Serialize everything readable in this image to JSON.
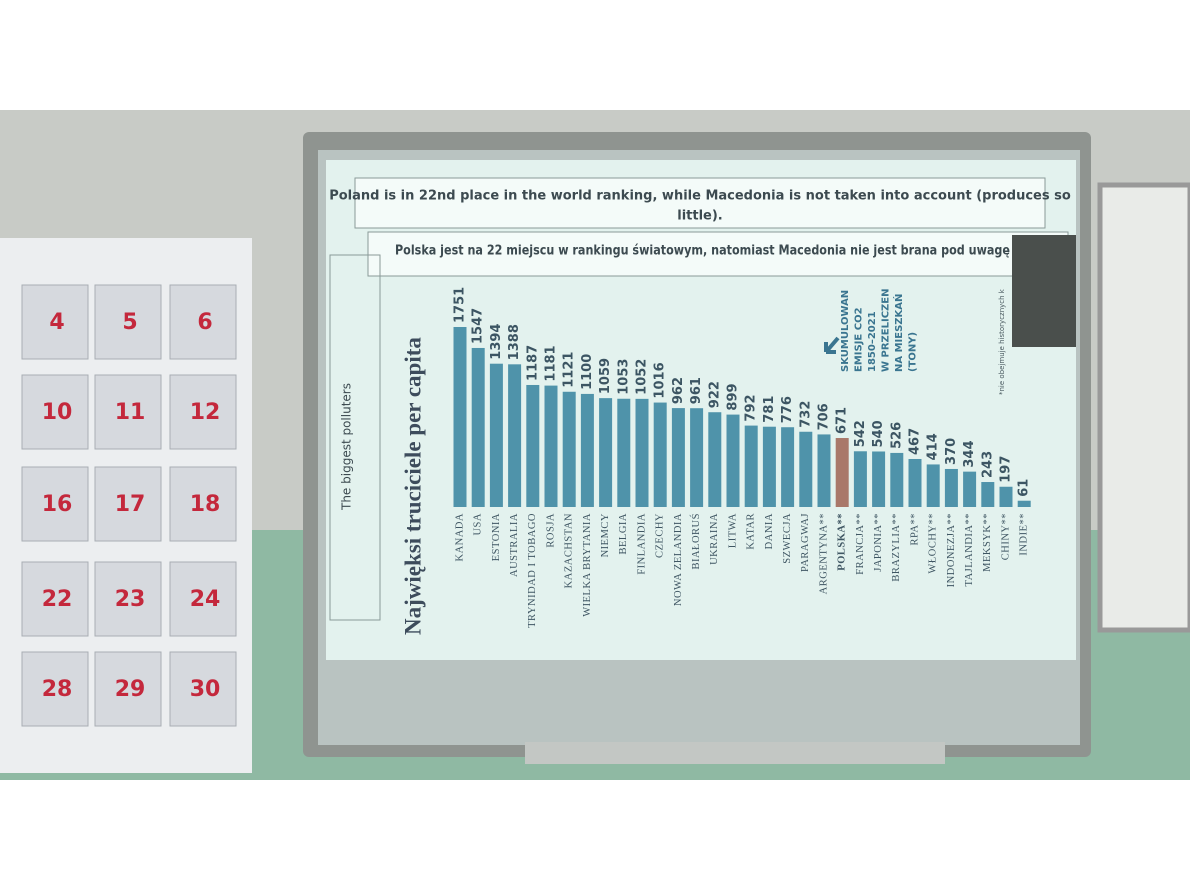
{
  "chart_data": {
    "type": "bar",
    "title": "Najwięksi truciciele per capita",
    "categories": [
      "KANADA",
      "USA",
      "ESTONIA",
      "AUSTRALIA",
      "TRYNIDAD I TOBAGO",
      "ROSJA",
      "KAZACHSTAN",
      "WIELKA BRYTANIA",
      "NIEMCY",
      "BELGIA",
      "FINLANDIA",
      "CZECHY",
      "NOWA ZELANDIA",
      "BIAŁORUŚ",
      "UKRAINA",
      "LITWA",
      "KATAR",
      "DANIA",
      "SZWECJA",
      "PARAGWAJ",
      "ARGENTYNA**",
      "POLSKA**",
      "FRANCJA**",
      "JAPONIA**",
      "BRAZYLIA**",
      "RPA**",
      "WŁOCHY**",
      "INDONEZJA**",
      "TAJLANDIA**",
      "MEKSYK**",
      "CHINY**",
      "INDIE**"
    ],
    "values": [
      1751,
      1547,
      1394,
      1388,
      1187,
      1181,
      1121,
      1100,
      1059,
      1053,
      1052,
      1016,
      962,
      961,
      922,
      899,
      792,
      781,
      776,
      732,
      706,
      671,
      542,
      540,
      526,
      467,
      414,
      370,
      344,
      243,
      197,
      61
    ],
    "color": "#4f93aa",
    "highlight_category": "POLSKA**",
    "highlight_color": "#a9786a",
    "ylim": [
      0,
      1751
    ],
    "annotation": [
      "SKUMULOWAN",
      "EMISJE CO2",
      "1850–2021",
      "W PRZELICZEN",
      "NA MIESZKAŃ",
      "(TONY)"
    ],
    "footnote": "*nie obejmuje historycznych k"
  },
  "slide": {
    "header_en": [
      "Poland is in 22nd place in the world ranking, while Macedonia is not taken into account (produces so",
      "little)."
    ],
    "header_pl": "Polska jest na 22 miejscu w rankingu światowym, natomiast Macedonia nie jest brana pod uwagę",
    "side_label": "The biggest polluters"
  },
  "calendar": {
    "numbers": [
      "4",
      "5",
      "6",
      "10",
      "11",
      "12",
      "16",
      "17",
      "18",
      "22",
      "23",
      "24",
      "28",
      "29",
      "30"
    ]
  }
}
